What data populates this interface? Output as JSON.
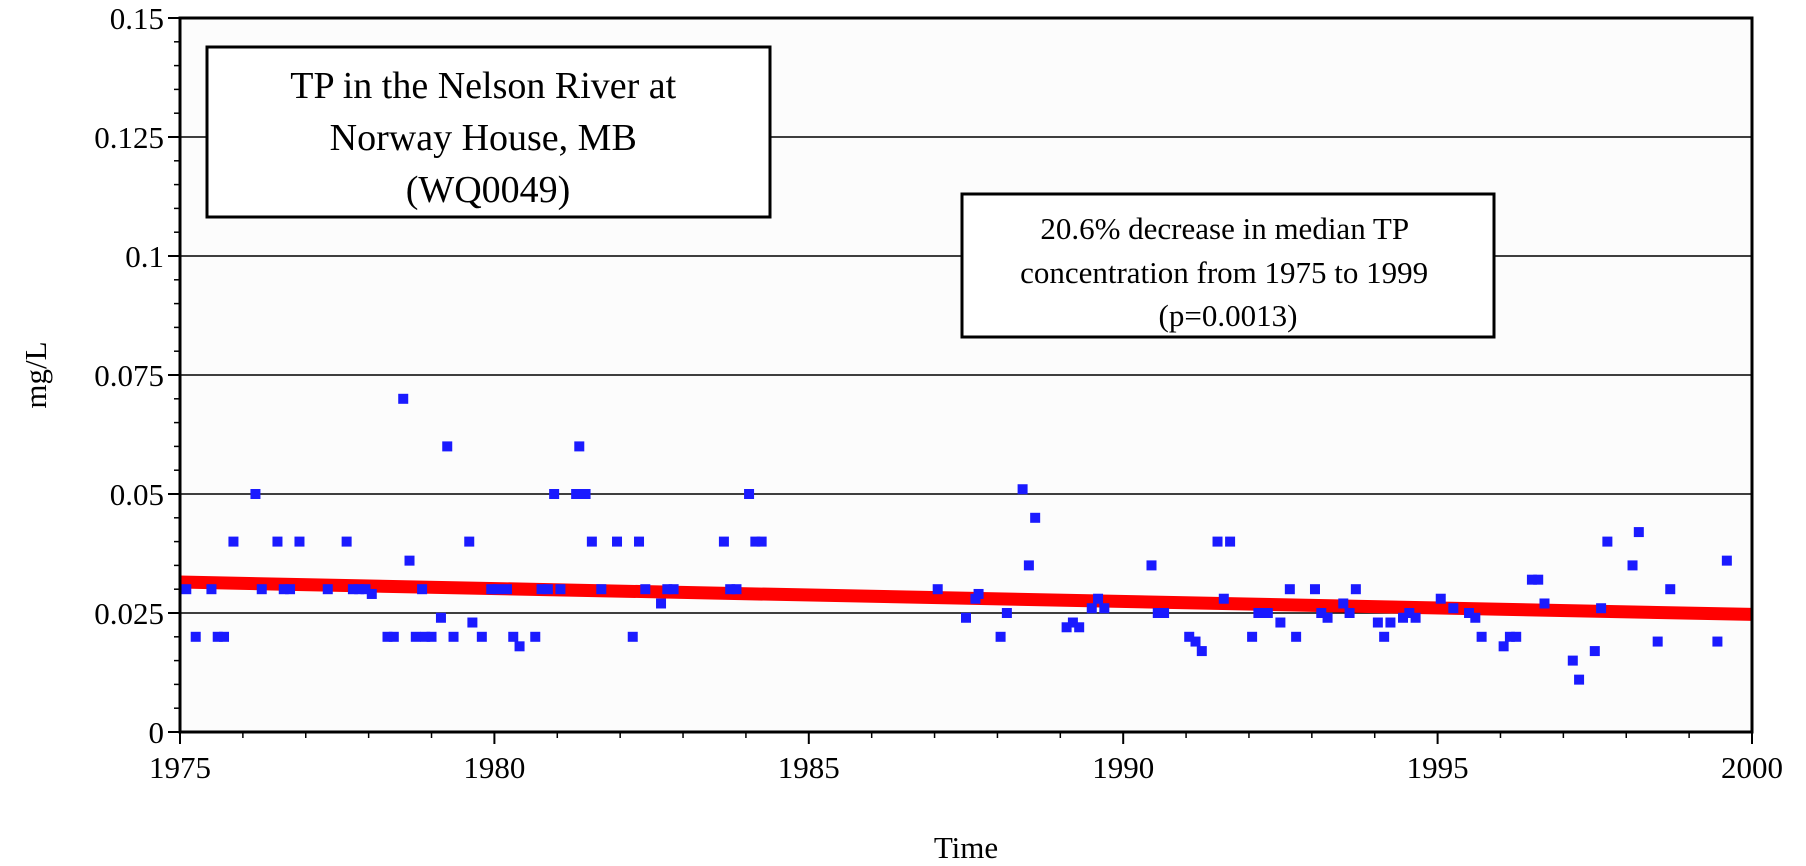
{
  "chart_data": {
    "type": "scatter",
    "title": [
      "TP in the Nelson River at",
      "Norway House, MB",
      "(WQ0049)"
    ],
    "annotation": [
      "20.6% decrease in median TP",
      "concentration from 1975 to 1999",
      "(p=0.0013)"
    ],
    "xlabel": "Time",
    "ylabel": "mg/L",
    "xlim": [
      1975,
      2000
    ],
    "ylim": [
      0,
      0.15
    ],
    "x_ticks": [
      1975,
      1980,
      1985,
      1990,
      1995,
      2000
    ],
    "x_tick_labels": [
      "1975",
      "1980",
      "1985",
      "1990",
      "1995",
      "2000"
    ],
    "y_ticks": [
      0,
      0.025,
      0.05,
      0.075,
      0.1,
      0.125,
      0.15
    ],
    "y_tick_labels": [
      "0",
      "0.025",
      "0.05",
      "0.075",
      "0.1",
      "0.125",
      "0.15"
    ],
    "grid": "horizontal",
    "background": "#fcfcfc",
    "series": [
      {
        "type": "scatter",
        "color": "#1a1aff",
        "points": [
          [
            1975.1,
            0.03
          ],
          [
            1975.25,
            0.02
          ],
          [
            1975.5,
            0.03
          ],
          [
            1975.6,
            0.02
          ],
          [
            1975.7,
            0.02
          ],
          [
            1975.85,
            0.04
          ],
          [
            1976.2,
            0.05
          ],
          [
            1976.3,
            0.03
          ],
          [
            1976.55,
            0.04
          ],
          [
            1976.65,
            0.03
          ],
          [
            1976.75,
            0.03
          ],
          [
            1976.9,
            0.04
          ],
          [
            1977.35,
            0.03
          ],
          [
            1977.65,
            0.04
          ],
          [
            1977.75,
            0.03
          ],
          [
            1977.85,
            0.03
          ],
          [
            1977.95,
            0.03
          ],
          [
            1978.05,
            0.029
          ],
          [
            1978.3,
            0.02
          ],
          [
            1978.4,
            0.02
          ],
          [
            1978.55,
            0.07
          ],
          [
            1978.65,
            0.036
          ],
          [
            1978.75,
            0.02
          ],
          [
            1978.85,
            0.03
          ],
          [
            1978.9,
            0.02
          ],
          [
            1979.0,
            0.02
          ],
          [
            1979.15,
            0.024
          ],
          [
            1979.25,
            0.06
          ],
          [
            1979.35,
            0.02
          ],
          [
            1979.6,
            0.04
          ],
          [
            1979.65,
            0.023
          ],
          [
            1979.8,
            0.02
          ],
          [
            1979.95,
            0.03
          ],
          [
            1980.05,
            0.03
          ],
          [
            1980.2,
            0.03
          ],
          [
            1980.3,
            0.02
          ],
          [
            1980.4,
            0.018
          ],
          [
            1980.65,
            0.02
          ],
          [
            1980.75,
            0.03
          ],
          [
            1980.85,
            0.03
          ],
          [
            1980.95,
            0.05
          ],
          [
            1981.05,
            0.03
          ],
          [
            1981.3,
            0.05
          ],
          [
            1981.35,
            0.06
          ],
          [
            1981.45,
            0.05
          ],
          [
            1981.55,
            0.04
          ],
          [
            1981.7,
            0.03
          ],
          [
            1981.95,
            0.04
          ],
          [
            1982.2,
            0.02
          ],
          [
            1982.3,
            0.04
          ],
          [
            1982.4,
            0.03
          ],
          [
            1982.65,
            0.027
          ],
          [
            1982.75,
            0.03
          ],
          [
            1982.85,
            0.03
          ],
          [
            1983.65,
            0.04
          ],
          [
            1983.75,
            0.03
          ],
          [
            1983.85,
            0.03
          ],
          [
            1984.05,
            0.05
          ],
          [
            1984.15,
            0.04
          ],
          [
            1984.25,
            0.04
          ],
          [
            1987.05,
            0.03
          ],
          [
            1987.5,
            0.024
          ],
          [
            1987.65,
            0.028
          ],
          [
            1987.7,
            0.029
          ],
          [
            1988.05,
            0.02
          ],
          [
            1988.15,
            0.025
          ],
          [
            1988.4,
            0.051
          ],
          [
            1988.5,
            0.035
          ],
          [
            1988.6,
            0.045
          ],
          [
            1989.1,
            0.022
          ],
          [
            1989.2,
            0.023
          ],
          [
            1989.3,
            0.022
          ],
          [
            1989.5,
            0.026
          ],
          [
            1989.6,
            0.028
          ],
          [
            1989.7,
            0.026
          ],
          [
            1990.45,
            0.035
          ],
          [
            1990.55,
            0.025
          ],
          [
            1990.65,
            0.025
          ],
          [
            1991.05,
            0.02
          ],
          [
            1991.15,
            0.019
          ],
          [
            1991.25,
            0.017
          ],
          [
            1991.5,
            0.04
          ],
          [
            1991.6,
            0.028
          ],
          [
            1991.7,
            0.04
          ],
          [
            1992.05,
            0.02
          ],
          [
            1992.15,
            0.025
          ],
          [
            1992.3,
            0.025
          ],
          [
            1992.5,
            0.023
          ],
          [
            1992.65,
            0.03
          ],
          [
            1992.75,
            0.02
          ],
          [
            1993.05,
            0.03
          ],
          [
            1993.15,
            0.025
          ],
          [
            1993.25,
            0.024
          ],
          [
            1993.5,
            0.027
          ],
          [
            1993.6,
            0.025
          ],
          [
            1993.7,
            0.03
          ],
          [
            1994.05,
            0.023
          ],
          [
            1994.15,
            0.02
          ],
          [
            1994.25,
            0.023
          ],
          [
            1994.45,
            0.024
          ],
          [
            1994.55,
            0.025
          ],
          [
            1994.65,
            0.024
          ],
          [
            1995.05,
            0.028
          ],
          [
            1995.25,
            0.026
          ],
          [
            1995.5,
            0.025
          ],
          [
            1995.6,
            0.024
          ],
          [
            1995.7,
            0.02
          ],
          [
            1996.05,
            0.018
          ],
          [
            1996.15,
            0.02
          ],
          [
            1996.25,
            0.02
          ],
          [
            1996.5,
            0.032
          ],
          [
            1996.6,
            0.032
          ],
          [
            1996.7,
            0.027
          ],
          [
            1997.15,
            0.015
          ],
          [
            1997.25,
            0.011
          ],
          [
            1997.5,
            0.017
          ],
          [
            1997.6,
            0.026
          ],
          [
            1997.7,
            0.04
          ],
          [
            1998.1,
            0.035
          ],
          [
            1998.2,
            0.042
          ],
          [
            1998.5,
            0.019
          ],
          [
            1998.7,
            0.03
          ],
          [
            1999.45,
            0.019
          ],
          [
            1999.6,
            0.036
          ]
        ]
      },
      {
        "type": "line",
        "color": "#ff0000",
        "x": [
          1975,
          2000
        ],
        "y": [
          0.0315,
          0.0247
        ]
      }
    ]
  }
}
